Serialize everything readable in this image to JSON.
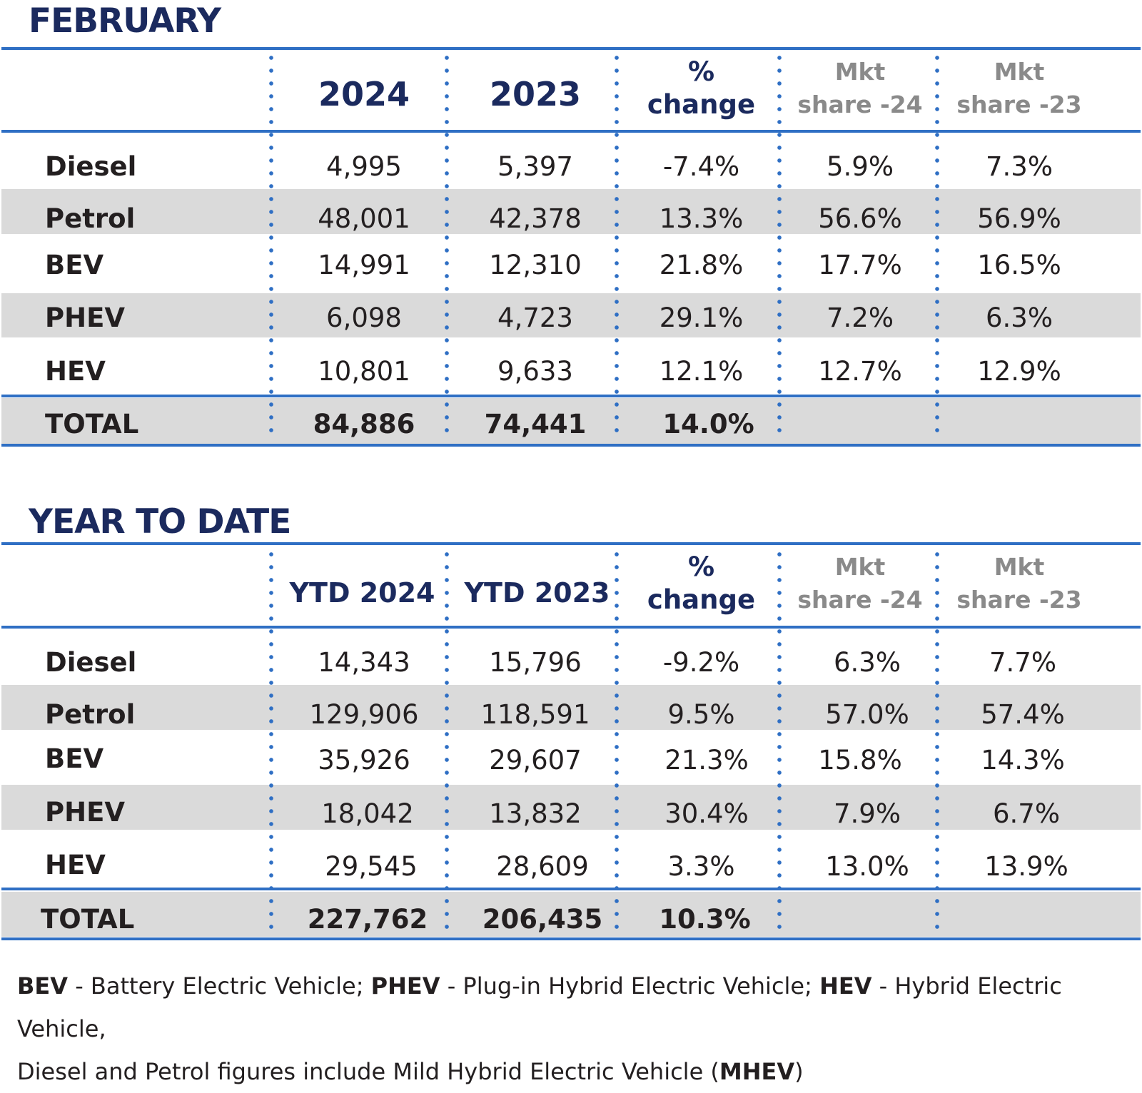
{
  "february": {
    "title": "FEBRUARY",
    "headers": {
      "col1": "2024",
      "col2": "2023",
      "change_line1": "%",
      "change_line2": "change",
      "share24_line1": "Mkt",
      "share24_line2": "share -24",
      "share23_line1": "Mkt",
      "share23_line2": "share -23"
    },
    "rows": [
      {
        "label": "Diesel",
        "v2024": "4,995",
        "v2023": "5,397",
        "change": "-7.4%",
        "share24": "5.9%",
        "share23": "7.3%"
      },
      {
        "label": "Petrol",
        "v2024": "48,001",
        "v2023": "42,378",
        "change": "13.3%",
        "share24": "56.6%",
        "share23": "56.9%"
      },
      {
        "label": "BEV",
        "v2024": "14,991",
        "v2023": "12,310",
        "change": "21.8%",
        "share24": "17.7%",
        "share23": "16.5%"
      },
      {
        "label": "PHEV",
        "v2024": "6,098",
        "v2023": "4,723",
        "change": "29.1%",
        "share24": "7.2%",
        "share23": "6.3%"
      },
      {
        "label": "HEV",
        "v2024": "10,801",
        "v2023": "9,633",
        "change": "12.1%",
        "share24": "12.7%",
        "share23": "12.9%"
      }
    ],
    "total": {
      "label": "TOTAL",
      "v2024": "84,886",
      "v2023": "74,441",
      "change": "14.0%"
    }
  },
  "ytd": {
    "title": "YEAR TO DATE",
    "headers": {
      "col1": "YTD 2024",
      "col2": "YTD 2023",
      "change_line1": "%",
      "change_line2": "change",
      "share24_line1": "Mkt",
      "share24_line2": "share -24",
      "share23_line1": "Mkt",
      "share23_line2": "share -23"
    },
    "rows": [
      {
        "label": "Diesel",
        "v2024": "14,343",
        "v2023": "15,796",
        "change": "-9.2%",
        "share24": "6.3%",
        "share23": "7.7%"
      },
      {
        "label": "Petrol",
        "v2024": "129,906",
        "v2023": "118,591",
        "change": "9.5%",
        "share24": "57.0%",
        "share23": "57.4%"
      },
      {
        "label": "BEV",
        "v2024": "35,926",
        "v2023": "29,607",
        "change": "21.3%",
        "share24": "15.8%",
        "share23": "14.3%"
      },
      {
        "label": "PHEV",
        "v2024": "18,042",
        "v2023": "13,832",
        "change": "30.4%",
        "share24": "7.9%",
        "share23": "6.7%"
      },
      {
        "label": "HEV",
        "v2024": "29,545",
        "v2023": "28,609",
        "change": "3.3%",
        "share24": "13.0%",
        "share23": "13.9%"
      }
    ],
    "total": {
      "label": "TOTAL",
      "v2024": "227,762",
      "v2023": "206,435",
      "change": "10.3%"
    }
  },
  "footnote": {
    "bev_abbr": "BEV",
    "bev_text": " - Battery Electric Vehicle; ",
    "phev_abbr": "PHEV",
    "phev_text": " - Plug-in Hybrid Electric Vehicle; ",
    "hev_abbr": "HEV",
    "hev_text": " - Hybrid Electric Vehicle,",
    "line2_text": "Diesel and Petrol figures include Mild Hybrid Electric Vehicle (",
    "mhev_abbr": "MHEV",
    "line2_end": ")"
  },
  "colors": {
    "title_navy": "#1b2a5e",
    "rule_blue": "#2f6fc4",
    "band_grey": "#dadada",
    "muted_header": "#8a8a8a"
  }
}
